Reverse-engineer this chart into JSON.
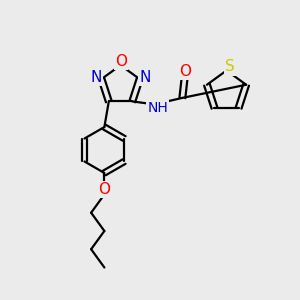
{
  "bg_color": "#ebebeb",
  "bond_color": "#000000",
  "atom_colors": {
    "N": "#0000cc",
    "O": "#ff0000",
    "S": "#cccc00",
    "C": "#000000"
  },
  "lw": 1.6,
  "font_size": 11
}
